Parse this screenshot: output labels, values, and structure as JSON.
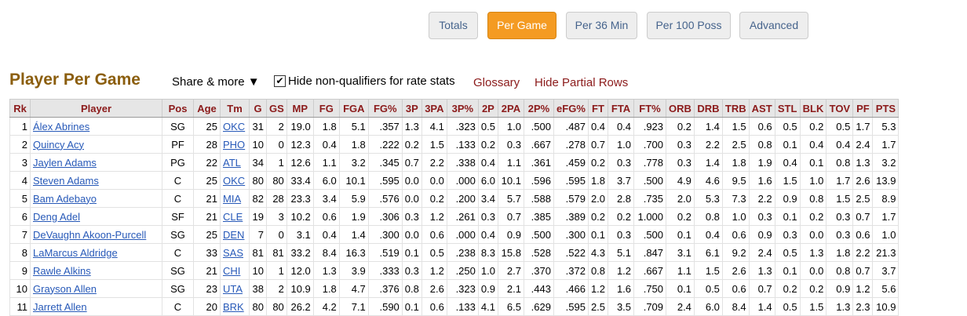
{
  "tabs": [
    "Totals",
    "Per Game",
    "Per 36 Min",
    "Per 100 Poss",
    "Advanced"
  ],
  "active_tab": "Per Game",
  "title": "Player Per Game",
  "share_label": "Share & more ▼",
  "hide_nonqual_label": "Hide non-qualifiers for rate stats",
  "glossary_label": "Glossary",
  "hide_partial_label": "Hide Partial Rows",
  "columns": [
    "Rk",
    "Player",
    "Pos",
    "Age",
    "Tm",
    "G",
    "GS",
    "MP",
    "FG",
    "FGA",
    "FG%",
    "3P",
    "3PA",
    "3P%",
    "2P",
    "2PA",
    "2P%",
    "eFG%",
    "FT",
    "FTA",
    "FT%",
    "ORB",
    "DRB",
    "TRB",
    "AST",
    "STL",
    "BLK",
    "TOV",
    "PF",
    "PTS"
  ],
  "rows": [
    [
      "1",
      "Álex Abrines",
      "SG",
      "25",
      "OKC",
      "31",
      "2",
      "19.0",
      "1.8",
      "5.1",
      ".357",
      "1.3",
      "4.1",
      ".323",
      "0.5",
      "1.0",
      ".500",
      ".487",
      "0.4",
      "0.4",
      ".923",
      "0.2",
      "1.4",
      "1.5",
      "0.6",
      "0.5",
      "0.2",
      "0.5",
      "1.7",
      "5.3"
    ],
    [
      "2",
      "Quincy Acy",
      "PF",
      "28",
      "PHO",
      "10",
      "0",
      "12.3",
      "0.4",
      "1.8",
      ".222",
      "0.2",
      "1.5",
      ".133",
      "0.2",
      "0.3",
      ".667",
      ".278",
      "0.7",
      "1.0",
      ".700",
      "0.3",
      "2.2",
      "2.5",
      "0.8",
      "0.1",
      "0.4",
      "0.4",
      "2.4",
      "1.7"
    ],
    [
      "3",
      "Jaylen Adams",
      "PG",
      "22",
      "ATL",
      "34",
      "1",
      "12.6",
      "1.1",
      "3.2",
      ".345",
      "0.7",
      "2.2",
      ".338",
      "0.4",
      "1.1",
      ".361",
      ".459",
      "0.2",
      "0.3",
      ".778",
      "0.3",
      "1.4",
      "1.8",
      "1.9",
      "0.4",
      "0.1",
      "0.8",
      "1.3",
      "3.2"
    ],
    [
      "4",
      "Steven Adams",
      "C",
      "25",
      "OKC",
      "80",
      "80",
      "33.4",
      "6.0",
      "10.1",
      ".595",
      "0.0",
      "0.0",
      ".000",
      "6.0",
      "10.1",
      ".596",
      ".595",
      "1.8",
      "3.7",
      ".500",
      "4.9",
      "4.6",
      "9.5",
      "1.6",
      "1.5",
      "1.0",
      "1.7",
      "2.6",
      "13.9"
    ],
    [
      "5",
      "Bam Adebayo",
      "C",
      "21",
      "MIA",
      "82",
      "28",
      "23.3",
      "3.4",
      "5.9",
      ".576",
      "0.0",
      "0.2",
      ".200",
      "3.4",
      "5.7",
      ".588",
      ".579",
      "2.0",
      "2.8",
      ".735",
      "2.0",
      "5.3",
      "7.3",
      "2.2",
      "0.9",
      "0.8",
      "1.5",
      "2.5",
      "8.9"
    ],
    [
      "6",
      "Deng Adel",
      "SF",
      "21",
      "CLE",
      "19",
      "3",
      "10.2",
      "0.6",
      "1.9",
      ".306",
      "0.3",
      "1.2",
      ".261",
      "0.3",
      "0.7",
      ".385",
      ".389",
      "0.2",
      "0.2",
      "1.000",
      "0.2",
      "0.8",
      "1.0",
      "0.3",
      "0.1",
      "0.2",
      "0.3",
      "0.7",
      "1.7"
    ],
    [
      "7",
      "DeVaughn Akoon-Purcell",
      "SG",
      "25",
      "DEN",
      "7",
      "0",
      "3.1",
      "0.4",
      "1.4",
      ".300",
      "0.0",
      "0.6",
      ".000",
      "0.4",
      "0.9",
      ".500",
      ".300",
      "0.1",
      "0.3",
      ".500",
      "0.1",
      "0.4",
      "0.6",
      "0.9",
      "0.3",
      "0.0",
      "0.3",
      "0.6",
      "1.0"
    ],
    [
      "8",
      "LaMarcus Aldridge",
      "C",
      "33",
      "SAS",
      "81",
      "81",
      "33.2",
      "8.4",
      "16.3",
      ".519",
      "0.1",
      "0.5",
      ".238",
      "8.3",
      "15.8",
      ".528",
      ".522",
      "4.3",
      "5.1",
      ".847",
      "3.1",
      "6.1",
      "9.2",
      "2.4",
      "0.5",
      "1.3",
      "1.8",
      "2.2",
      "21.3"
    ],
    [
      "9",
      "Rawle Alkins",
      "SG",
      "21",
      "CHI",
      "10",
      "1",
      "12.0",
      "1.3",
      "3.9",
      ".333",
      "0.3",
      "1.2",
      ".250",
      "1.0",
      "2.7",
      ".370",
      ".372",
      "0.8",
      "1.2",
      ".667",
      "1.1",
      "1.5",
      "2.6",
      "1.3",
      "0.1",
      "0.0",
      "0.8",
      "0.7",
      "3.7"
    ],
    [
      "10",
      "Grayson Allen",
      "SG",
      "23",
      "UTA",
      "38",
      "2",
      "10.9",
      "1.8",
      "4.7",
      ".376",
      "0.8",
      "2.6",
      ".323",
      "0.9",
      "2.1",
      ".443",
      ".466",
      "1.2",
      "1.6",
      ".750",
      "0.1",
      "0.5",
      "0.6",
      "0.7",
      "0.2",
      "0.2",
      "0.9",
      "1.2",
      "5.6"
    ],
    [
      "11",
      "Jarrett Allen",
      "C",
      "20",
      "BRK",
      "80",
      "80",
      "26.2",
      "4.2",
      "7.1",
      ".590",
      "0.1",
      "0.6",
      ".133",
      "4.1",
      "6.5",
      ".629",
      ".595",
      "2.5",
      "3.5",
      ".709",
      "2.4",
      "6.0",
      "8.4",
      "1.4",
      "0.5",
      "1.5",
      "1.3",
      "2.3",
      "10.9"
    ]
  ]
}
